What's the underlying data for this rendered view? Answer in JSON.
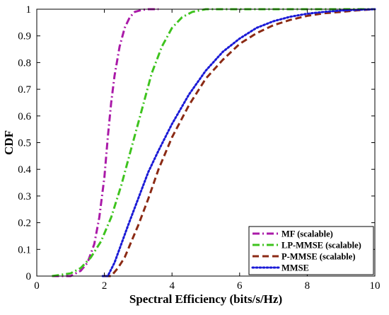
{
  "chart_data": {
    "type": "line",
    "xlabel": "Spectral Efficiency (bits/s/Hz)",
    "ylabel": "CDF",
    "xlim": [
      0,
      10
    ],
    "ylim": [
      0,
      1
    ],
    "xticks": [
      "0",
      "2",
      "4",
      "6",
      "8",
      "10"
    ],
    "yticks": [
      "0",
      "0.1",
      "0.2",
      "0.3",
      "0.4",
      "0.5",
      "0.6",
      "0.7",
      "0.8",
      "0.9",
      "1"
    ],
    "grid": false,
    "legend_position": "bottom-right",
    "series": [
      {
        "name": "MF (scalable)",
        "color": "#aa1aa8",
        "style": "dash-dot",
        "x": [
          0.45,
          1.0,
          1.3,
          1.5,
          1.7,
          1.85,
          2.0,
          2.1,
          2.2,
          2.3,
          2.45,
          2.6,
          2.75,
          2.9,
          3.1,
          3.3,
          3.6
        ],
        "y": [
          0.0,
          0.0,
          0.02,
          0.05,
          0.12,
          0.22,
          0.37,
          0.52,
          0.65,
          0.75,
          0.86,
          0.93,
          0.97,
          0.99,
          0.997,
          1.0,
          1.0
        ]
      },
      {
        "name": "LP-MMSE (scalable)",
        "color": "#3ec31e",
        "style": "dash-dot",
        "x": [
          0.45,
          1.0,
          1.3,
          1.6,
          1.9,
          2.2,
          2.5,
          2.8,
          3.1,
          3.4,
          3.7,
          4.0,
          4.3,
          4.6,
          5.0,
          5.5,
          6.0,
          10.0
        ],
        "y": [
          0.0,
          0.01,
          0.03,
          0.07,
          0.13,
          0.22,
          0.34,
          0.48,
          0.62,
          0.76,
          0.86,
          0.93,
          0.97,
          0.99,
          1.0,
          1.0,
          1.0,
          1.0
        ]
      },
      {
        "name": "P-MMSE (scalable)",
        "color": "#8b2a14",
        "style": "dashed",
        "x": [
          2.0,
          2.2,
          2.4,
          2.6,
          2.8,
          3.0,
          3.3,
          3.6,
          4.0,
          4.5,
          5.0,
          5.5,
          6.0,
          6.5,
          7.0,
          7.5,
          8.0,
          8.5,
          9.0,
          9.5,
          10.0
        ],
        "y": [
          0.0,
          0.0,
          0.03,
          0.07,
          0.13,
          0.19,
          0.29,
          0.4,
          0.52,
          0.64,
          0.74,
          0.81,
          0.87,
          0.91,
          0.94,
          0.96,
          0.975,
          0.985,
          0.99,
          0.996,
          1.0
        ]
      },
      {
        "name": "MMSE",
        "color": "#1a1ad6",
        "style": "dotted",
        "x": [
          1.95,
          2.1,
          2.3,
          2.5,
          2.7,
          3.0,
          3.3,
          3.6,
          4.0,
          4.5,
          5.0,
          5.5,
          6.0,
          6.5,
          7.0,
          7.5,
          8.0,
          8.5,
          9.0,
          9.5,
          10.0
        ],
        "y": [
          0.0,
          0.0,
          0.05,
          0.12,
          0.19,
          0.29,
          0.39,
          0.47,
          0.57,
          0.68,
          0.77,
          0.84,
          0.89,
          0.93,
          0.955,
          0.972,
          0.983,
          0.99,
          0.995,
          0.998,
          1.0
        ]
      }
    ]
  }
}
